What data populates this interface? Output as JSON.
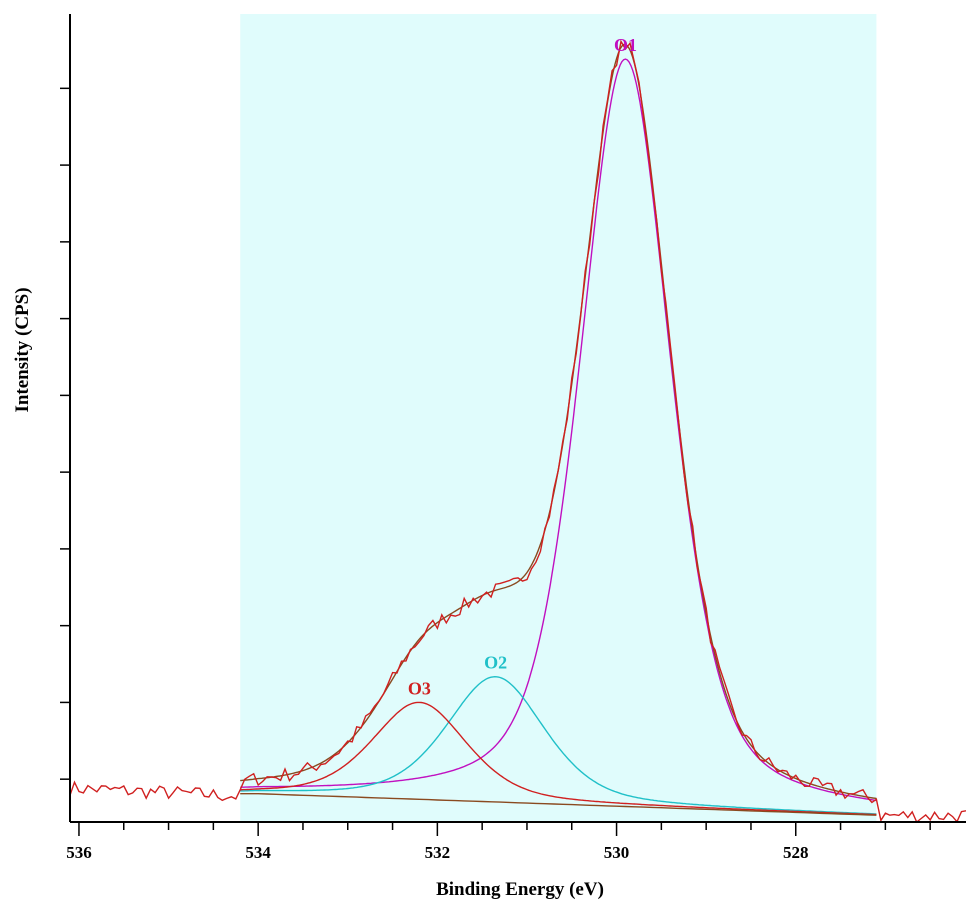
{
  "chart_data": {
    "type": "line",
    "title": "",
    "xlabel": "Binding Energy (eV)",
    "ylabel": "Intensity (CPS)",
    "xlim": [
      536.1,
      526.1
    ],
    "x_reversed": true,
    "ylim": [
      0,
      1
    ],
    "y_ticks_labeled": false,
    "x_ticks": [
      536,
      534,
      532,
      530,
      528
    ],
    "x_tick_labels": [
      "536",
      "534",
      "532",
      "530",
      "528"
    ],
    "fit_region": {
      "x_start": 534.2,
      "x_end": 527.1,
      "color": "#e0fcfc"
    },
    "background": {
      "y_at_534": 0.035,
      "y_at_527": 0.008
    },
    "peaks": [
      {
        "name": "O1",
        "center": 529.9,
        "height": 0.925,
        "fwhm": 1.2,
        "color": "#c010c0"
      },
      {
        "name": "O2",
        "center": 531.35,
        "height": 0.155,
        "fwhm": 1.3,
        "color": "#20c0c8"
      },
      {
        "name": "O3",
        "center": 532.2,
        "height": 0.12,
        "fwhm": 1.25,
        "color": "#d02020"
      }
    ],
    "series": [
      {
        "name": "",
        "kind": "raw_spectrum",
        "color": "#d02020"
      },
      {
        "name": "",
        "kind": "envelope",
        "color": "#8a4a20"
      },
      {
        "name": "",
        "kind": "background",
        "color": "#8a4a20"
      }
    ]
  }
}
